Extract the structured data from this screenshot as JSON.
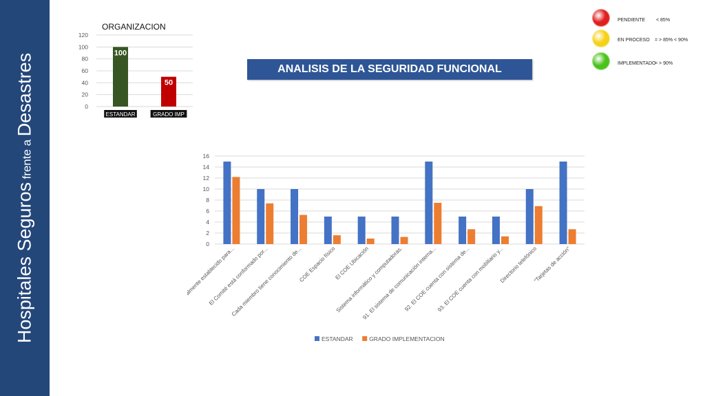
{
  "sidebar": {
    "title_part1": "Hospitales Seguros",
    "title_part2": "frente a",
    "title_part3": "Desastres"
  },
  "header": {
    "title": "ANALISIS DE LA SEGURIDAD FUNCIONAL"
  },
  "status_legend": [
    {
      "label": "PENDIENTE",
      "threshold": "< 85%",
      "color": "#e02020"
    },
    {
      "label": "EN PROCESO",
      "threshold": "= > 85%  < 90%",
      "color": "#f5d21a"
    },
    {
      "label": "IMPLEMENTADO",
      "threshold": "= > 90%",
      "color": "#4cc21c"
    }
  ],
  "chart_data": [
    {
      "type": "bar",
      "title": "ORGANIZACION",
      "categories": [
        "ESTANDAR",
        "GRADO IMP"
      ],
      "values": [
        100,
        50
      ],
      "data_labels": [
        "100",
        "50"
      ],
      "colors": [
        "#375623",
        "#c00000"
      ],
      "ylim": [
        0,
        120
      ],
      "yticks": [
        0,
        20,
        40,
        60,
        80,
        100,
        120
      ],
      "grid": true
    },
    {
      "type": "bar",
      "categories": [
        "Comité formalmente establecido para...",
        "El Comité está conformado por...",
        "Cada miembro tiene conocimiento de...",
        "COE Espacio físico",
        "El COE Ubicación",
        "Sistema informático y computadoras.",
        "91. El sistema de comunicación interna...",
        "92. El COE cuenta con sistema de...",
        "93. El COE cuenta con mobiliario y...",
        "Directorio telefónico",
        "\"Tarjetas de acción\""
      ],
      "series": [
        {
          "name": "ESTANDAR",
          "color": "#4472c4",
          "values": [
            15,
            10,
            10,
            5,
            5,
            5,
            15,
            5,
            5,
            10,
            15
          ]
        },
        {
          "name": "GRADO IMPLEMENTACION",
          "color": "#ed7d31",
          "values": [
            12.2,
            7.4,
            5.3,
            1.6,
            1.0,
            1.3,
            7.5,
            2.7,
            1.4,
            6.9,
            2.7
          ]
        }
      ],
      "ylim": [
        0,
        16
      ],
      "yticks": [
        0,
        2,
        4,
        6,
        8,
        10,
        12,
        14,
        16
      ],
      "grid": true,
      "legend_position": "bottom"
    }
  ]
}
